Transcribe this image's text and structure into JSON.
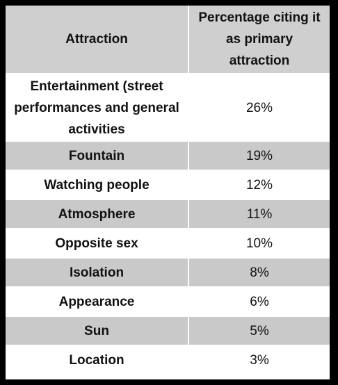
{
  "table": {
    "headers": {
      "attraction": "Attraction",
      "percentage": "Percentage citing it as primary attraction"
    },
    "rows": [
      {
        "attraction": "Entertainment (street performances and general activities",
        "percentage": "26%"
      },
      {
        "attraction": "Fountain",
        "percentage": "19%"
      },
      {
        "attraction": "Watching people",
        "percentage": "12%"
      },
      {
        "attraction": "Atmosphere",
        "percentage": "11%"
      },
      {
        "attraction": "Opposite sex",
        "percentage": "10%"
      },
      {
        "attraction": "Isolation",
        "percentage": "8%"
      },
      {
        "attraction": "Appearance",
        "percentage": "6%"
      },
      {
        "attraction": "Sun",
        "percentage": "5%"
      },
      {
        "attraction": "Location",
        "percentage": "3%"
      }
    ]
  },
  "colors": {
    "background": "#000000",
    "header_fill": "#cfcfcf",
    "band_fill": "#c9c9c9",
    "cell_fill": "#ffffff",
    "text": "#111111"
  }
}
